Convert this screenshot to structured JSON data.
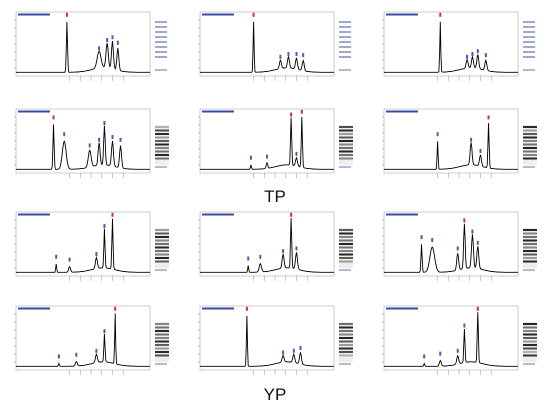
{
  "groups": [
    {
      "label": "TP"
    },
    {
      "label": "YP"
    }
  ]
}
